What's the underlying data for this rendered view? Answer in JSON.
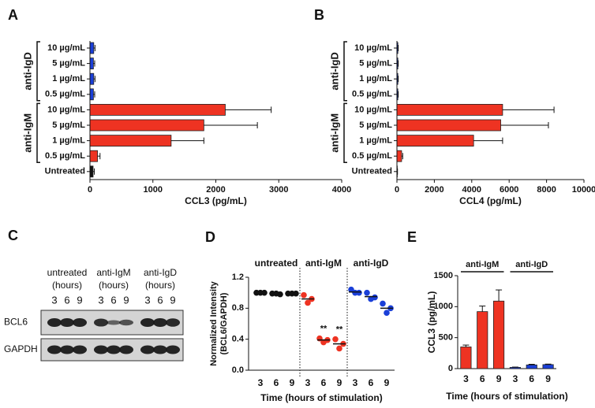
{
  "chart_data": [
    {
      "type": "bar",
      "orientation": "horizontal",
      "panel_label": "A",
      "x_label": "CCL3 (pg/mL)",
      "xlim": [
        0,
        4000
      ],
      "xticks": [
        0,
        1000,
        2000,
        3000,
        4000
      ],
      "series": [
        {
          "name": "anti-IgD",
          "color": "#1a3fd8",
          "categories": [
            "10 µg/mL",
            "5 µg/mL",
            "1 µg/mL",
            "0.5 µg/mL"
          ],
          "values": [
            60,
            55,
            60,
            55
          ],
          "errors": [
            20,
            20,
            20,
            20
          ]
        },
        {
          "name": "anti-IgM",
          "color": "#ee3322",
          "categories": [
            "10 µg/mL",
            "5 µg/mL",
            "1 µg/mL",
            "0.5 µg/mL"
          ],
          "values": [
            2150,
            1810,
            1290,
            120
          ],
          "errors": [
            730,
            850,
            520,
            40
          ]
        },
        {
          "color": "#111111",
          "categories": [
            "Untreated"
          ],
          "values": [
            50
          ],
          "errors": [
            20
          ]
        }
      ]
    },
    {
      "type": "bar",
      "orientation": "horizontal",
      "panel_label": "B",
      "x_label": "CCL4 (pg/mL)",
      "xlim": [
        0,
        10000
      ],
      "xticks": [
        0,
        2000,
        4000,
        6000,
        8000,
        10000
      ],
      "series": [
        {
          "name": "anti-IgD",
          "color": "#1a3fd8",
          "categories": [
            "10 µg/mL",
            "5 µg/mL",
            "1 µg/mL",
            "0.5 µg/mL"
          ],
          "values": [
            50,
            50,
            50,
            50
          ],
          "errors": [
            20,
            20,
            20,
            20
          ]
        },
        {
          "name": "anti-IgM",
          "color": "#ee3322",
          "categories": [
            "10 µg/mL",
            "5 µg/mL",
            "1 µg/mL",
            "0.5 µg/mL"
          ],
          "values": [
            5650,
            5550,
            4100,
            250
          ],
          "errors": [
            2750,
            2550,
            1550,
            60
          ]
        },
        {
          "color": "#111111",
          "categories": [
            "Untreated"
          ],
          "values": [
            20
          ],
          "errors": [
            10
          ]
        }
      ]
    },
    {
      "type": "scatter",
      "panel_label": "D",
      "y_label": [
        "Normalized Intensity",
        "(BCL6/GAPDH)"
      ],
      "x_label": "Time (hours of stimulation)",
      "ylim": [
        0,
        1.2
      ],
      "yticks": [
        {
          "value": 0,
          "label": "0.0"
        },
        0.4,
        0.8,
        1.2
      ],
      "series": [
        {
          "name": "untreated",
          "color": "#111111",
          "categories": [
            "3",
            "6",
            "9"
          ],
          "points": [
            [
              1.0,
              1.0,
              1.0
            ],
            [
              0.99,
              0.98,
              0.99
            ],
            [
              0.99,
              0.99,
              0.99
            ]
          ],
          "means": [
            1.0,
            0.99,
            0.99
          ]
        },
        {
          "name": "anti-IgM",
          "color": "#ee3322",
          "categories": [
            "3",
            "6",
            "9"
          ],
          "points": [
            [
              0.97,
              0.92,
              0.87
            ],
            [
              0.41,
              0.39,
              0.36
            ],
            [
              0.4,
              0.34,
              0.28
            ]
          ],
          "means": [
            0.92,
            0.39,
            0.34
          ],
          "marks": [
            null,
            "**",
            "**"
          ]
        },
        {
          "name": "anti-IgD",
          "color": "#1a3fd8",
          "categories": [
            "3",
            "6",
            "9"
          ],
          "points": [
            [
              1.04,
              1.0,
              1.0
            ],
            [
              1.0,
              0.94,
              0.92
            ],
            [
              0.86,
              0.8,
              0.74
            ]
          ],
          "means": [
            1.01,
            0.95,
            0.8
          ]
        }
      ]
    },
    {
      "type": "bar",
      "orientation": "vertical",
      "panel_label": "E",
      "y_label": "CCL3 (pg/mL)",
      "x_label": "Time (hours of stimulation)",
      "ylim": [
        0,
        1500
      ],
      "yticks": [
        0,
        500,
        1000,
        1500
      ],
      "series": [
        {
          "name": "anti-IgM",
          "color": "#ee3322",
          "categories": [
            "3",
            "6",
            "9"
          ],
          "values": [
            350,
            920,
            1090
          ],
          "errors": [
            30,
            90,
            180
          ]
        },
        {
          "name": "anti-IgD",
          "color": "#1a3fd8",
          "categories": [
            "3",
            "6",
            "9"
          ],
          "values": [
            20,
            60,
            65
          ],
          "errors": [
            5,
            10,
            8
          ]
        }
      ]
    }
  ],
  "blot": {
    "panel_label": "C",
    "groups": [
      {
        "label": [
          "untreated",
          "(hours)"
        ],
        "lanes": [
          "3",
          "6",
          "9"
        ]
      },
      {
        "label": [
          "anti-IgM",
          "(hours)"
        ],
        "lanes": [
          "3",
          "6",
          "9"
        ]
      },
      {
        "label": [
          "anti-IgD",
          "(hours)"
        ],
        "lanes": [
          "3",
          "6",
          "9"
        ]
      }
    ],
    "rows": [
      "BCL6",
      "GAPDH"
    ]
  }
}
